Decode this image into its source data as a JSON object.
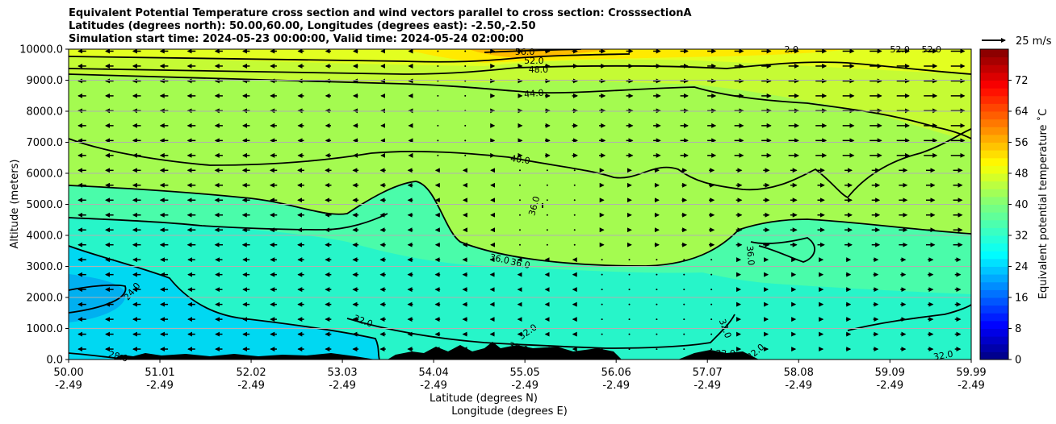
{
  "chart_data": {
    "type": "contourf",
    "title_lines": [
      "Equivalent Potential Temperature cross section and wind vectors parallel to cross section: CrosssectionA",
      "Latitudes (degrees north): 50.00,60.00, Longitudes (degrees east): -2.50,-2.50",
      "Simulation start time: 2024-05-23 00:00:00, Valid time: 2024-05-24 02:00:00"
    ],
    "ylabel": "Altitude (meters)",
    "xlabel_1": "Latitude (degrees N)",
    "xlabel_2": "Longitude (degrees E)",
    "ylim": [
      0,
      10000
    ],
    "y_ticks": [
      0,
      1000,
      2000,
      3000,
      4000,
      5000,
      6000,
      7000,
      8000,
      9000,
      10000
    ],
    "y_tick_labels": [
      "0.0",
      "1000.0",
      "2000.0",
      "3000.0",
      "4000.0",
      "5000.0",
      "6000.0",
      "7000.0",
      "8000.0",
      "9000.0",
      "10000.0"
    ],
    "xlim": [
      50.0,
      59.99
    ],
    "x_ticks": [
      50.0,
      51.01,
      52.02,
      53.03,
      54.04,
      55.05,
      56.06,
      57.07,
      58.08,
      59.09,
      59.99
    ],
    "x_tick_labels_lat": [
      "50.00",
      "51.01",
      "52.02",
      "53.03",
      "54.04",
      "55.05",
      "56.06",
      "57.07",
      "58.08",
      "59.09",
      "59.99"
    ],
    "x_tick_labels_lon": [
      "-2.49",
      "-2.49",
      "-2.49",
      "-2.49",
      "-2.49",
      "-2.49",
      "-2.49",
      "-2.49",
      "-2.49",
      "-2.49",
      "-2.49"
    ],
    "colorbar": {
      "label": "Equivalent potential temperature ˚C",
      "range": [
        0,
        80
      ],
      "ticks": [
        0,
        8,
        16,
        24,
        32,
        40,
        48,
        56,
        64,
        72
      ],
      "tick_labels": [
        "0",
        "8",
        "16",
        "24",
        "32",
        "40",
        "48",
        "56",
        "64",
        "72"
      ]
    },
    "quiver_key": {
      "label": "25 m/s",
      "speed": 25
    },
    "fill_colors": {
      "c24": "#00b0f0",
      "c28": "#00d8f2",
      "c32": "#27f5c9",
      "c36": "#4afcaa",
      "c40": "#a4fb50",
      "c44": "#c5fb34",
      "c48": "#e3ff20",
      "c52": "#ffea00",
      "c56": "#ffbb00"
    },
    "contour_labels": [
      {
        "text": "56.0",
        "lat": 55.05,
        "alt": 9920,
        "rot": 0
      },
      {
        "text": "52.0",
        "lat": 55.15,
        "alt": 9640,
        "rot": 0
      },
      {
        "text": "48.0",
        "lat": 55.2,
        "alt": 9350,
        "rot": 0
      },
      {
        "text": "44.0",
        "lat": 55.15,
        "alt": 8580,
        "rot": -5
      },
      {
        "text": "40.0",
        "lat": 55.0,
        "alt": 6450,
        "rot": 8
      },
      {
        "text": "36.0",
        "lat": 55.15,
        "alt": 4950,
        "rot": -75
      },
      {
        "text": "36.0",
        "lat": 54.77,
        "alt": 3250,
        "rot": 12
      },
      {
        "text": "36.0",
        "lat": 55.0,
        "alt": 3100,
        "rot": 12
      },
      {
        "text": "36.0",
        "lat": 57.55,
        "alt": 3350,
        "rot": 85
      },
      {
        "text": "32.0",
        "lat": 53.26,
        "alt": 1250,
        "rot": 20
      },
      {
        "text": "32.0",
        "lat": 55.08,
        "alt": 900,
        "rot": -35
      },
      {
        "text": "32.0",
        "lat": 54.98,
        "alt": 390,
        "rot": 15
      },
      {
        "text": "32.0",
        "lat": 57.27,
        "alt": 1000,
        "rot": 70
      },
      {
        "text": "32.0",
        "lat": 57.27,
        "alt": 210,
        "rot": 0
      },
      {
        "text": "32.0",
        "lat": 57.6,
        "alt": 250,
        "rot": -40
      },
      {
        "text": "32.0",
        "lat": 59.68,
        "alt": 140,
        "rot": -10
      },
      {
        "text": "28.0",
        "lat": 50.55,
        "alt": 110,
        "rot": 15
      },
      {
        "text": "24.0",
        "lat": 50.7,
        "alt": 2200,
        "rot": -50
      },
      {
        "text": "2.0",
        "lat": 58.0,
        "alt": 10000,
        "rot": 0
      },
      {
        "text": "52.0",
        "lat": 59.2,
        "alt": 10000,
        "rot": 0
      },
      {
        "text": "52.0",
        "lat": 59.55,
        "alt": 10000,
        "rot": 0
      }
    ]
  }
}
